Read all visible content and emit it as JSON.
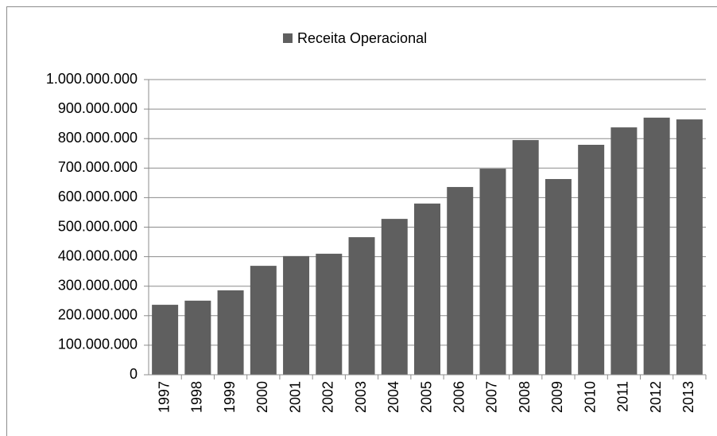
{
  "chart_data": {
    "type": "bar",
    "categories": [
      "1997",
      "1998",
      "1999",
      "2000",
      "2001",
      "2002",
      "2003",
      "2004",
      "2005",
      "2006",
      "2007",
      "2008",
      "2009",
      "2010",
      "2011",
      "2012",
      "2013"
    ],
    "series": [
      {
        "name": "Receita Operacional",
        "color": "#5f5f5f",
        "values": [
          237000000,
          251000000,
          286000000,
          369000000,
          402000000,
          410000000,
          466000000,
          528000000,
          580000000,
          636000000,
          698000000,
          795000000,
          663000000,
          779000000,
          838000000,
          871000000,
          865000000
        ]
      }
    ],
    "ylim": [
      0,
      1000000000
    ],
    "yticks": [
      0,
      {
        "value": 100000000,
        "label": "100.000.000"
      },
      {
        "value": 200000000,
        "label": "200.000.000"
      },
      {
        "value": 300000000,
        "label": "300.000.000"
      },
      {
        "value": 400000000,
        "label": "400.000.000"
      },
      {
        "value": 500000000,
        "label": "500.000.000"
      },
      {
        "value": 600000000,
        "label": "600.000.000"
      },
      {
        "value": 700000000,
        "label": "700.000.000"
      },
      {
        "value": 800000000,
        "label": "800.000.000"
      },
      {
        "value": 900000000,
        "label": "900.000.000"
      },
      {
        "value": 1000000000,
        "label": "1.000.000.000"
      }
    ],
    "grid": true,
    "legend": "top"
  }
}
